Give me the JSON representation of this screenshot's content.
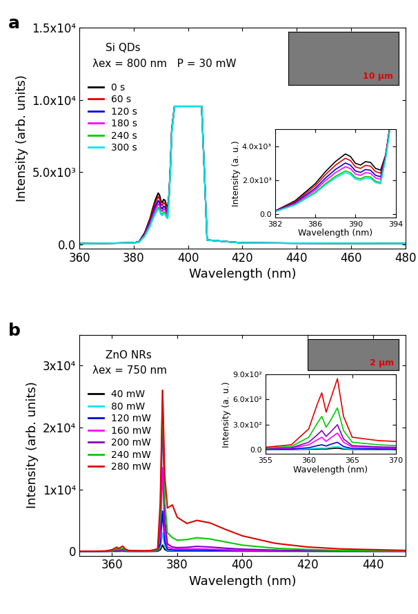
{
  "chart_data": [
    {
      "type": "line",
      "panel_label": "a",
      "annotations": [
        "Si QDs",
        "λex = 800 nm   P = 30 mW"
      ],
      "xlabel": "Wavelength (nm)",
      "ylabel": "Intensity (arb. units)",
      "xlim": [
        360,
        480
      ],
      "ylim": [
        -300,
        15000
      ],
      "xticks": [
        360,
        380,
        400,
        420,
        440,
        460,
        480
      ],
      "yticks": [
        {
          "value": 0,
          "label": "0.0"
        },
        {
          "value": 5000,
          "label": "5.0x10³"
        },
        {
          "value": 10000,
          "label": "1.0x10⁴"
        },
        {
          "value": 15000,
          "label": "1.5x10⁴"
        }
      ],
      "legend": "upper left",
      "image_scale_label": "10 μm",
      "x": [
        360,
        380,
        382,
        384,
        386,
        387,
        388,
        389,
        389.5,
        390,
        390.5,
        391,
        391.5,
        392,
        392.5,
        393,
        393.5,
        394,
        395,
        404,
        405,
        406,
        407,
        420,
        440,
        480
      ],
      "series": [
        {
          "name": "0 s",
          "color": "#000000",
          "values": [
            50,
            100,
            200,
            800,
            1800,
            2500,
            3100,
            3550,
            3400,
            3000,
            2900,
            3100,
            3050,
            2700,
            2600,
            3500,
            5500,
            8000,
            9550,
            9550,
            9550,
            5000,
            300,
            100,
            80,
            60
          ]
        },
        {
          "name": "60 s",
          "color": "#e00000",
          "values": [
            50,
            100,
            190,
            745,
            1675,
            2325,
            2885,
            3300,
            3160,
            2790,
            2700,
            2880,
            2835,
            2510,
            2420,
            3450,
            5450,
            7950,
            9550,
            9550,
            9550,
            5000,
            300,
            100,
            80,
            60
          ]
        },
        {
          "name": "120 s",
          "color": "#0000e0",
          "values": [
            50,
            100,
            180,
            680,
            1530,
            2125,
            2635,
            3020,
            2890,
            2550,
            2465,
            2635,
            2590,
            2295,
            2210,
            3400,
            5400,
            7900,
            9550,
            9550,
            9550,
            5000,
            300,
            100,
            80,
            60
          ]
        },
        {
          "name": "180 s",
          "color": "#ff00ff",
          "values": [
            50,
            100,
            170,
            630,
            1420,
            1975,
            2450,
            2800,
            2685,
            2370,
            2290,
            2450,
            2410,
            2135,
            2055,
            3350,
            5350,
            7850,
            9550,
            9550,
            9550,
            5000,
            300,
            100,
            80,
            60
          ]
        },
        {
          "name": "240 s",
          "color": "#00cc00",
          "values": [
            50,
            100,
            160,
            575,
            1295,
            1800,
            2230,
            2555,
            2450,
            2160,
            2090,
            2230,
            2195,
            1945,
            1870,
            3300,
            5300,
            7800,
            9550,
            9550,
            9550,
            5000,
            300,
            100,
            80,
            60
          ]
        },
        {
          "name": "300 s",
          "color": "#00e5ee",
          "values": [
            50,
            100,
            155,
            550,
            1240,
            1725,
            2140,
            2450,
            2345,
            2070,
            2000,
            2140,
            2105,
            1865,
            1795,
            3250,
            5250,
            7750,
            9550,
            9550,
            9550,
            5000,
            300,
            100,
            80,
            60
          ]
        }
      ],
      "inset": {
        "xlabel": "Wavelength (nm)",
        "ylabel": "Intensity (a. u.)",
        "xlim": [
          382,
          394
        ],
        "ylim": [
          -200,
          5000
        ],
        "xticks": [
          382,
          386,
          390,
          394
        ],
        "yticks": [
          {
            "value": 0,
            "label": "0.0"
          },
          {
            "value": 2000,
            "label": "2.0x10³"
          },
          {
            "value": 4000,
            "label": "4.0x10³"
          }
        ]
      }
    },
    {
      "type": "line",
      "panel_label": "b",
      "annotations": [
        "ZnO NRs",
        "λex = 750 nm"
      ],
      "xlabel": "Wavelength (nm)",
      "ylabel": "Intensity (arb. units)",
      "xlim": [
        350,
        450
      ],
      "ylim": [
        -700,
        35000
      ],
      "xticks": [
        360,
        380,
        400,
        420,
        440
      ],
      "yticks": [
        0,
        {
          "value": 10000,
          "label": "1x10⁴"
        },
        {
          "value": 20000,
          "label": "2x10⁴"
        },
        {
          "value": 30000,
          "label": "3x10⁴"
        }
      ],
      "legend": "upper left",
      "image_scale_label": "2 μm",
      "x": [
        350,
        355,
        358,
        360,
        361,
        361.5,
        362,
        362.5,
        363.3,
        364,
        365,
        368,
        370,
        372,
        374,
        374.8,
        375.5,
        376.2,
        377,
        378.5,
        380,
        383,
        386,
        390,
        395,
        400,
        410,
        420,
        430,
        450
      ],
      "series": [
        {
          "name": "40 mW",
          "color": "#000000",
          "values": [
            2,
            2,
            3,
            6,
            8,
            10,
            9,
            14,
            20,
            9,
            4,
            3,
            3,
            4,
            15,
            250,
            1000,
            300,
            60,
            40,
            35,
            38,
            40,
            35,
            25,
            18,
            10,
            6,
            4,
            2
          ]
        },
        {
          "name": "80 mW",
          "color": "#00e5ee",
          "values": [
            3,
            4,
            6,
            12,
            18,
            20,
            18,
            28,
            40,
            18,
            8,
            6,
            6,
            8,
            30,
            600,
            3000,
            700,
            150,
            100,
            90,
            95,
            100,
            90,
            60,
            45,
            25,
            15,
            10,
            5
          ]
        },
        {
          "name": "120 mW",
          "color": "#0000e0",
          "values": [
            5,
            6,
            10,
            25,
            50,
            60,
            45,
            65,
            90,
            40,
            15,
            10,
            10,
            15,
            50,
            1200,
            6500,
            1500,
            300,
            200,
            180,
            190,
            200,
            170,
            120,
            90,
            50,
            30,
            20,
            10
          ]
        },
        {
          "name": "160 mW",
          "color": "#ff00ff",
          "values": [
            8,
            10,
            20,
            60,
            120,
            150,
            100,
            140,
            200,
            90,
            35,
            25,
            20,
            30,
            100,
            2500,
            13500,
            3000,
            700,
            400,
            350,
            380,
            400,
            350,
            250,
            180,
            100,
            60,
            40,
            20
          ]
        },
        {
          "name": "200 mW",
          "color": "#8000c0",
          "values": [
            10,
            15,
            25,
            90,
            180,
            230,
            160,
            210,
            300,
            130,
            50,
            35,
            30,
            50,
            150,
            4000,
            22500,
            5000,
            1200,
            700,
            600,
            650,
            800,
            700,
            500,
            350,
            200,
            100,
            60,
            30
          ]
        },
        {
          "name": "240 mW",
          "color": "#00cc00",
          "values": [
            15,
            20,
            40,
            150,
            320,
            400,
            270,
            350,
            500,
            230,
            90,
            60,
            50,
            80,
            250,
            6000,
            26000,
            8000,
            3000,
            2200,
            1800,
            1900,
            2200,
            2000,
            1500,
            1000,
            500,
            300,
            150,
            60
          ]
        },
        {
          "name": "280 mW",
          "color": "#e00000",
          "values": [
            20,
            30,
            60,
            250,
            550,
            680,
            450,
            600,
            850,
            400,
            150,
            110,
            100,
            150,
            400,
            8000,
            26000,
            12000,
            7000,
            7500,
            5500,
            4500,
            5000,
            4600,
            3500,
            2500,
            1300,
            700,
            400,
            150
          ]
        }
      ],
      "inset": {
        "xlabel": "Wavelength (nm)",
        "ylabel": "Intensity (a. u.)",
        "xlim": [
          355,
          370
        ],
        "ylim": [
          -50,
          900
        ],
        "xticks": [
          355,
          360,
          365,
          370
        ],
        "yticks": [
          {
            "value": 0,
            "label": "0.0"
          },
          {
            "value": 300,
            "label": "3.0x10²"
          },
          {
            "value": 600,
            "label": "6.0x10²"
          },
          {
            "value": 900,
            "label": "9.0x10²"
          }
        ]
      }
    }
  ]
}
